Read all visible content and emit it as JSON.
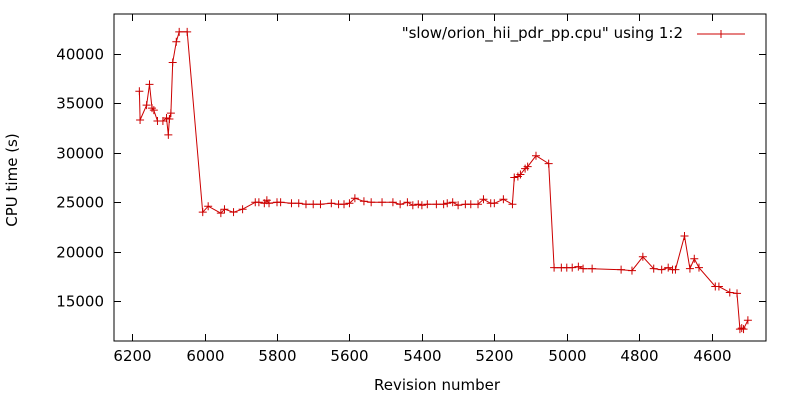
{
  "chart_data": {
    "type": "line",
    "title": "",
    "xlabel": "Revision number",
    "ylabel": "CPU time (s)",
    "xlim": [
      6250,
      4450
    ],
    "ylim": [
      11000,
      44000
    ],
    "x_reversed": true,
    "x_ticks": [
      6200,
      6000,
      5800,
      5600,
      5400,
      5200,
      5000,
      4800,
      4600
    ],
    "y_ticks": [
      15000,
      20000,
      25000,
      30000,
      35000,
      40000
    ],
    "grid": false,
    "legend_position": "top-right",
    "series": [
      {
        "name": "\"slow/orion_hii_pdr_pp.cpu\" using 1:2",
        "color": "#cc0000",
        "marker": "plus",
        "points": [
          [
            6180,
            36200
          ],
          [
            6178,
            33300
          ],
          [
            6160,
            34800
          ],
          [
            6152,
            36900
          ],
          [
            6145,
            34500
          ],
          [
            6140,
            34300
          ],
          [
            6130,
            33200
          ],
          [
            6115,
            33200
          ],
          [
            6105,
            33500
          ],
          [
            6100,
            31800
          ],
          [
            6097,
            33400
          ],
          [
            6093,
            34000
          ],
          [
            6088,
            39100
          ],
          [
            6078,
            41200
          ],
          [
            6070,
            42200
          ],
          [
            6048,
            42200
          ],
          [
            6005,
            24000
          ],
          [
            5990,
            24600
          ],
          [
            5955,
            23900
          ],
          [
            5945,
            24300
          ],
          [
            5920,
            24000
          ],
          [
            5895,
            24300
          ],
          [
            5860,
            25000
          ],
          [
            5850,
            25000
          ],
          [
            5835,
            24900
          ],
          [
            5828,
            25200
          ],
          [
            5822,
            24900
          ],
          [
            5800,
            25000
          ],
          [
            5790,
            25000
          ],
          [
            5760,
            24900
          ],
          [
            5740,
            24900
          ],
          [
            5720,
            24800
          ],
          [
            5700,
            24800
          ],
          [
            5680,
            24800
          ],
          [
            5650,
            24900
          ],
          [
            5630,
            24800
          ],
          [
            5615,
            24800
          ],
          [
            5600,
            24900
          ],
          [
            5585,
            25400
          ],
          [
            5560,
            25100
          ],
          [
            5540,
            25000
          ],
          [
            5510,
            25000
          ],
          [
            5480,
            25000
          ],
          [
            5460,
            24800
          ],
          [
            5440,
            25000
          ],
          [
            5425,
            24700
          ],
          [
            5410,
            24800
          ],
          [
            5400,
            24700
          ],
          [
            5385,
            24800
          ],
          [
            5360,
            24800
          ],
          [
            5340,
            24800
          ],
          [
            5330,
            24900
          ],
          [
            5315,
            25000
          ],
          [
            5300,
            24700
          ],
          [
            5280,
            24800
          ],
          [
            5265,
            24800
          ],
          [
            5245,
            24800
          ],
          [
            5230,
            25300
          ],
          [
            5210,
            24900
          ],
          [
            5200,
            24900
          ],
          [
            5175,
            25300
          ],
          [
            5150,
            24800
          ],
          [
            5145,
            27500
          ],
          [
            5135,
            27600
          ],
          [
            5128,
            27800
          ],
          [
            5115,
            28400
          ],
          [
            5108,
            28600
          ],
          [
            5085,
            29700
          ],
          [
            5050,
            28900
          ],
          [
            5035,
            18400
          ],
          [
            5015,
            18400
          ],
          [
            5000,
            18400
          ],
          [
            4985,
            18400
          ],
          [
            4968,
            18500
          ],
          [
            4955,
            18300
          ],
          [
            4930,
            18300
          ],
          [
            4850,
            18200
          ],
          [
            4820,
            18100
          ],
          [
            4790,
            19500
          ],
          [
            4760,
            18300
          ],
          [
            4738,
            18200
          ],
          [
            4720,
            18400
          ],
          [
            4708,
            18200
          ],
          [
            4700,
            18200
          ],
          [
            4675,
            21600
          ],
          [
            4660,
            18300
          ],
          [
            4648,
            19300
          ],
          [
            4635,
            18400
          ],
          [
            4590,
            16500
          ],
          [
            4580,
            16500
          ],
          [
            4550,
            15900
          ],
          [
            4530,
            15800
          ],
          [
            4522,
            12200
          ],
          [
            4517,
            12300
          ],
          [
            4512,
            12200
          ],
          [
            4500,
            13100
          ]
        ]
      }
    ]
  }
}
